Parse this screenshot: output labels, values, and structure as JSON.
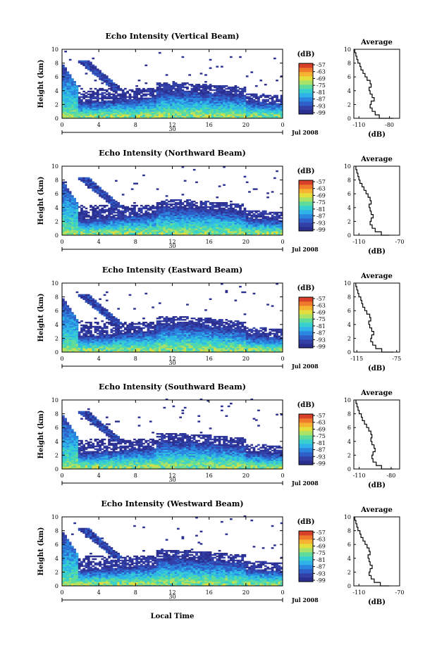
{
  "figure": {
    "xlabel": "Local Time",
    "date_label": "Jul 2008",
    "day_label": "30",
    "avg_title": "Average",
    "avg_xlabel": "(dB)",
    "cbar_title": "(dB)",
    "cbar_ticks": [
      "-57",
      "-63",
      "-69",
      "-75",
      "-81",
      "-87",
      "-93",
      "-99"
    ],
    "ylabel": "Height (km)",
    "x_ticks": [
      "0",
      "4",
      "8",
      "12",
      "16",
      "20",
      "0"
    ],
    "y_ticks": [
      "0",
      "2",
      "4",
      "6",
      "8",
      "10"
    ],
    "colors": {
      "scale": [
        "#2b2f8f",
        "#3340a8",
        "#2f5fc8",
        "#2a86df",
        "#2fb3e8",
        "#38d0cf",
        "#5fdc9c",
        "#a9e266",
        "#e4de3c",
        "#f6b231",
        "#f07a2b",
        "#d8402a"
      ]
    }
  },
  "chart_data": [
    {
      "type": "heatmap",
      "title": "Echo Intensity (Vertical Beam)",
      "ylabel": "Height (km)",
      "xlabel": "",
      "x_range": [
        0,
        24
      ],
      "y_range": [
        0,
        10
      ],
      "avg_ticks": [
        "-110",
        "-80"
      ],
      "avg_range": [
        -115,
        -70
      ],
      "avg_profile": [
        [
          0,
          -76
        ],
        [
          0.5,
          -90
        ],
        [
          1,
          -94
        ],
        [
          1.5,
          -97
        ],
        [
          2,
          -99
        ],
        [
          2.5,
          -98
        ],
        [
          3,
          -95
        ],
        [
          3.5,
          -97
        ],
        [
          4,
          -99
        ],
        [
          4.5,
          -100
        ],
        [
          5,
          -98
        ],
        [
          5.5,
          -99
        ],
        [
          6,
          -102
        ],
        [
          6.5,
          -104
        ],
        [
          7,
          -106
        ],
        [
          7.5,
          -108
        ],
        [
          8,
          -109
        ],
        [
          8.5,
          -111
        ],
        [
          9,
          -112
        ],
        [
          9.5,
          -113
        ],
        [
          10,
          -114
        ]
      ]
    },
    {
      "type": "heatmap",
      "title": "Echo Intensity (Northward Beam)",
      "ylabel": "Height (km)",
      "xlabel": "",
      "x_range": [
        0,
        24
      ],
      "y_range": [
        0,
        10
      ],
      "avg_ticks": [
        "-110",
        "-70"
      ],
      "avg_range": [
        -115,
        -70
      ],
      "avg_profile": [
        [
          0,
          -80
        ],
        [
          0.5,
          -88
        ],
        [
          1,
          -94
        ],
        [
          1.5,
          -97
        ],
        [
          2,
          -99
        ],
        [
          2.5,
          -98
        ],
        [
          3,
          -96
        ],
        [
          3.5,
          -98
        ],
        [
          4,
          -99
        ],
        [
          4.5,
          -100
        ],
        [
          5,
          -98
        ],
        [
          5.5,
          -99
        ],
        [
          6,
          -101
        ],
        [
          6.5,
          -103
        ],
        [
          7,
          -105
        ],
        [
          7.5,
          -107
        ],
        [
          8,
          -109
        ],
        [
          8.5,
          -110
        ],
        [
          9,
          -111
        ],
        [
          9.5,
          -112
        ],
        [
          10,
          -113
        ]
      ]
    },
    {
      "type": "heatmap",
      "title": "Echo Intensity (Eastward Beam)",
      "ylabel": "Height (km)",
      "xlabel": "",
      "x_range": [
        0,
        24
      ],
      "y_range": [
        0,
        10
      ],
      "avg_ticks": [
        "-115",
        "-75"
      ],
      "avg_range": [
        -118,
        -72
      ],
      "avg_profile": [
        [
          0,
          -78
        ],
        [
          0.5,
          -90
        ],
        [
          1,
          -96
        ],
        [
          1.5,
          -99
        ],
        [
          2,
          -101
        ],
        [
          2.5,
          -100
        ],
        [
          3,
          -98
        ],
        [
          3.5,
          -100
        ],
        [
          4,
          -102
        ],
        [
          4.5,
          -103
        ],
        [
          5,
          -101
        ],
        [
          5.5,
          -102
        ],
        [
          6,
          -105
        ],
        [
          6.5,
          -107
        ],
        [
          7,
          -109
        ],
        [
          7.5,
          -110
        ],
        [
          8,
          -111
        ],
        [
          8.5,
          -113
        ],
        [
          9,
          -114
        ],
        [
          9.5,
          -115
        ],
        [
          10,
          -116
        ]
      ]
    },
    {
      "type": "heatmap",
      "title": "Echo Intensity (Southward Beam)",
      "ylabel": "Height (km)",
      "xlabel": "",
      "x_range": [
        0,
        24
      ],
      "y_range": [
        0,
        10
      ],
      "avg_ticks": [
        "-110",
        "-80"
      ],
      "avg_range": [
        -115,
        -72
      ],
      "avg_profile": [
        [
          0,
          -78
        ],
        [
          0.5,
          -89
        ],
        [
          1,
          -94
        ],
        [
          1.5,
          -97
        ],
        [
          2,
          -98
        ],
        [
          2.5,
          -97
        ],
        [
          3,
          -95
        ],
        [
          3.5,
          -96
        ],
        [
          4,
          -98
        ],
        [
          4.5,
          -99
        ],
        [
          5,
          -98
        ],
        [
          5.5,
          -99
        ],
        [
          6,
          -101
        ],
        [
          6.5,
          -103
        ],
        [
          7,
          -105
        ],
        [
          7.5,
          -107
        ],
        [
          8,
          -108
        ],
        [
          8.5,
          -110
        ],
        [
          9,
          -111
        ],
        [
          9.5,
          -112
        ],
        [
          10,
          -113
        ]
      ]
    },
    {
      "type": "heatmap",
      "title": "Echo Intensity (Westward Beam)",
      "ylabel": "Height (km)",
      "xlabel": "Local Time",
      "x_range": [
        0,
        24
      ],
      "y_range": [
        0,
        10
      ],
      "avg_ticks": [
        "-110",
        "-70"
      ],
      "avg_range": [
        -115,
        -70
      ],
      "avg_profile": [
        [
          0,
          -80
        ],
        [
          0.5,
          -89
        ],
        [
          1,
          -95
        ],
        [
          1.5,
          -98
        ],
        [
          2,
          -100
        ],
        [
          2.5,
          -99
        ],
        [
          3,
          -97
        ],
        [
          3.5,
          -99
        ],
        [
          4,
          -100
        ],
        [
          4.5,
          -101
        ],
        [
          5,
          -99
        ],
        [
          5.5,
          -100
        ],
        [
          6,
          -102
        ],
        [
          6.5,
          -104
        ],
        [
          7,
          -106
        ],
        [
          7.5,
          -108
        ],
        [
          8,
          -109
        ],
        [
          8.5,
          -111
        ],
        [
          9,
          -112
        ],
        [
          9.5,
          -113
        ],
        [
          10,
          -114
        ]
      ]
    }
  ]
}
